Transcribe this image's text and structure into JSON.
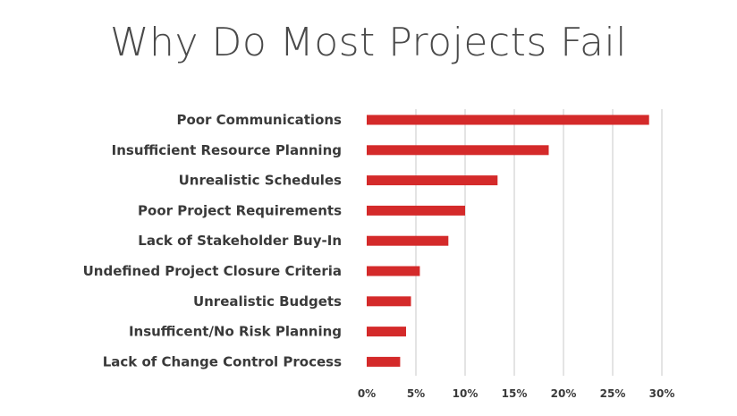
{
  "colors": {
    "bar": "#d42a2a",
    "grid": "#c8c8c8",
    "text": "#3a3a3a"
  },
  "chart_data": {
    "type": "bar",
    "orientation": "horizontal",
    "title": "Why Do Most Projects Fail",
    "categories": [
      "Poor Communications",
      "Insufficient Resource Planning",
      "Unrealistic Schedules",
      "Poor Project Requirements",
      "Lack of Stakeholder Buy-In",
      "Undefined Project Closure Criteria",
      "Unrealistic Budgets",
      "Insufficent/No Risk Planning",
      "Lack of Change Control Process"
    ],
    "values": [
      28.7,
      18.5,
      13.3,
      10.0,
      8.3,
      5.4,
      4.5,
      4.0,
      3.4
    ],
    "xlim": [
      0,
      30
    ],
    "xticks": [
      "0%",
      "5%",
      "10%",
      "15%",
      "20%",
      "25%",
      "30%"
    ],
    "grid": "vertical"
  }
}
